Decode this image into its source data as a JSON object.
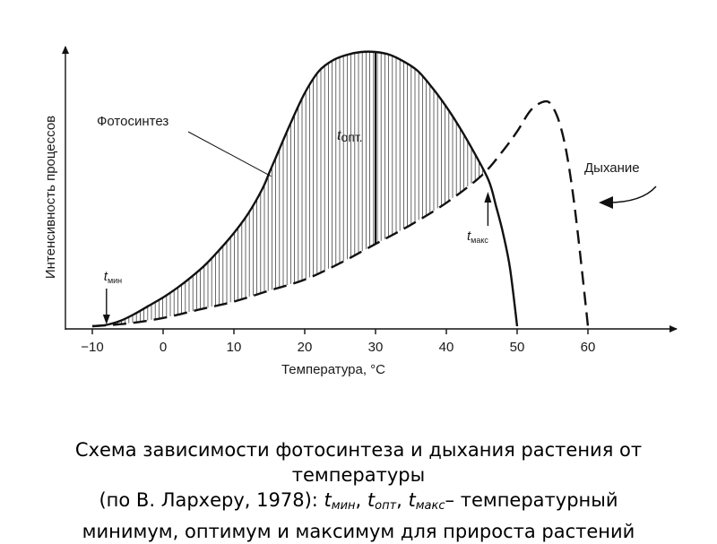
{
  "chart_data": {
    "type": "line",
    "xlabel": "Температура, °С",
    "ylabel": "Интенсивность процессов",
    "x_ticks": [
      -10,
      0,
      10,
      20,
      30,
      40,
      50,
      60
    ],
    "x_tick_labels": [
      "−10",
      "0",
      "10",
      "20",
      "30",
      "40",
      "50",
      "60"
    ],
    "xlim": [
      -12,
      72
    ],
    "ylim": [
      0,
      1
    ],
    "grid": false,
    "y_ticks_shown": false,
    "series": [
      {
        "name": "Фотосинтез",
        "style": "solid",
        "x": [
          -10,
          -8,
          -6,
          -4,
          -2,
          0,
          2,
          4,
          6,
          8,
          10,
          12,
          14,
          15,
          16,
          18,
          20,
          22,
          24,
          26,
          28,
          30,
          32,
          34,
          36,
          38,
          40,
          42,
          44,
          46,
          47,
          48,
          49,
          50
        ],
        "y": [
          0,
          0.005,
          0.02,
          0.045,
          0.075,
          0.105,
          0.14,
          0.18,
          0.225,
          0.28,
          0.34,
          0.41,
          0.5,
          0.56,
          0.62,
          0.74,
          0.85,
          0.93,
          0.97,
          0.99,
          1.0,
          1.0,
          0.99,
          0.965,
          0.93,
          0.87,
          0.8,
          0.72,
          0.63,
          0.53,
          0.44,
          0.34,
          0.21,
          0.0
        ]
      },
      {
        "name": "Дыхание",
        "style": "dashed",
        "x": [
          -10,
          -5,
          0,
          5,
          10,
          15,
          20,
          25,
          30,
          35,
          40,
          45,
          48,
          50,
          52,
          54,
          55,
          56,
          57,
          58,
          59,
          60
        ],
        "y": [
          0,
          0.01,
          0.03,
          0.06,
          0.09,
          0.13,
          0.17,
          0.23,
          0.3,
          0.37,
          0.45,
          0.55,
          0.64,
          0.71,
          0.79,
          0.82,
          0.8,
          0.74,
          0.63,
          0.46,
          0.24,
          0.0
        ]
      }
    ],
    "shaded_region": {
      "between": [
        "Фотосинтез",
        "Дыхание"
      ],
      "from_x": -10,
      "to_x": 46,
      "pattern": "vertical-hatch"
    },
    "annotations": {
      "photosynthesis": "Фотосинтез",
      "respiration": "Дыхание",
      "t_min": {
        "base": "t",
        "sub": "мин",
        "x": -8
      },
      "t_opt": {
        "base": "t",
        "sub": "опт.",
        "x": 30
      },
      "t_max": {
        "base": "t",
        "sub": "макс",
        "x": 46
      }
    }
  },
  "caption": {
    "line1": "Схема зависимости фотосинтеза и дыхания растения от",
    "line2": "температуры",
    "line3_prefix": "(по В. Лархеру, 1978): ",
    "t": "t",
    "sub_min": "мин",
    "sub_opt": "опт",
    "sub_max": "макс",
    "sep": ", ",
    "line3_suffix": "– температурный",
    "line4": "минимум, оптимум и максимум для прироста растений"
  }
}
